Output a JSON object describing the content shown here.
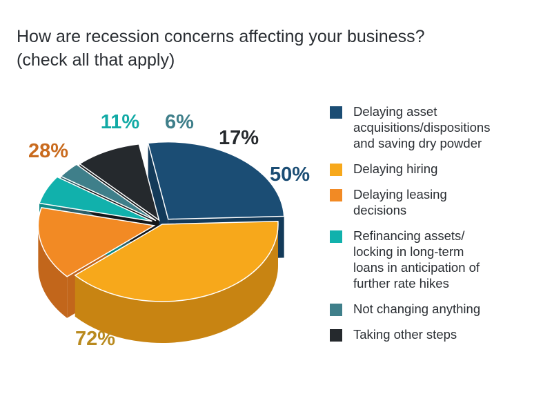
{
  "chart_data": {
    "type": "pie",
    "title": "How are recession concerns affecting your business? (check all that apply)",
    "title_lines": [
      "How are recession concerns affecting your business?",
      "(check all that apply)"
    ],
    "legend_position": "right",
    "slices": [
      {
        "label": "Delaying asset acquisitions/dispositions and saving dry powder",
        "legend_lines": [
          "Delaying asset",
          "acquisitions/dispositions",
          "and saving dry powder"
        ],
        "value": 50,
        "value_label": "50%",
        "color": "#1b4d74",
        "side_color": "#133a59",
        "label_color": "#1b4d74"
      },
      {
        "label": "Delaying hiring",
        "legend_lines": [
          "Delaying hiring"
        ],
        "value": 72,
        "value_label": "72%",
        "color": "#f7a81b",
        "side_color": "#c88412",
        "label_color": "#b98a1f"
      },
      {
        "label": "Delaying leasing decisions",
        "legend_lines": [
          "Delaying leasing",
          "decisions"
        ],
        "value": 28,
        "value_label": "28%",
        "color": "#f28a24",
        "side_color": "#c2661b",
        "label_color": "#c96b1e"
      },
      {
        "label": "Refinancing assets/ locking in long-term loans in anticipation of further rate hikes",
        "legend_lines": [
          "Refinancing assets/",
          "locking in long-term",
          "loans in anticipation of",
          "further rate hikes"
        ],
        "value": 11,
        "value_label": "11%",
        "color": "#11b1ac",
        "side_color": "#0c8a86",
        "label_color": "#12aaa5"
      },
      {
        "label": "Not changing anything",
        "legend_lines": [
          "Not changing anything"
        ],
        "value": 6,
        "value_label": "6%",
        "color": "#3f7f8a",
        "side_color": "#2d6069",
        "label_color": "#3f7f8a"
      },
      {
        "label": "Taking other steps",
        "legend_lines": [
          "Taking other steps"
        ],
        "value": 17,
        "value_label": "17%",
        "color": "#25292d",
        "side_color": "#15181a",
        "label_color": "#25292d"
      }
    ]
  }
}
